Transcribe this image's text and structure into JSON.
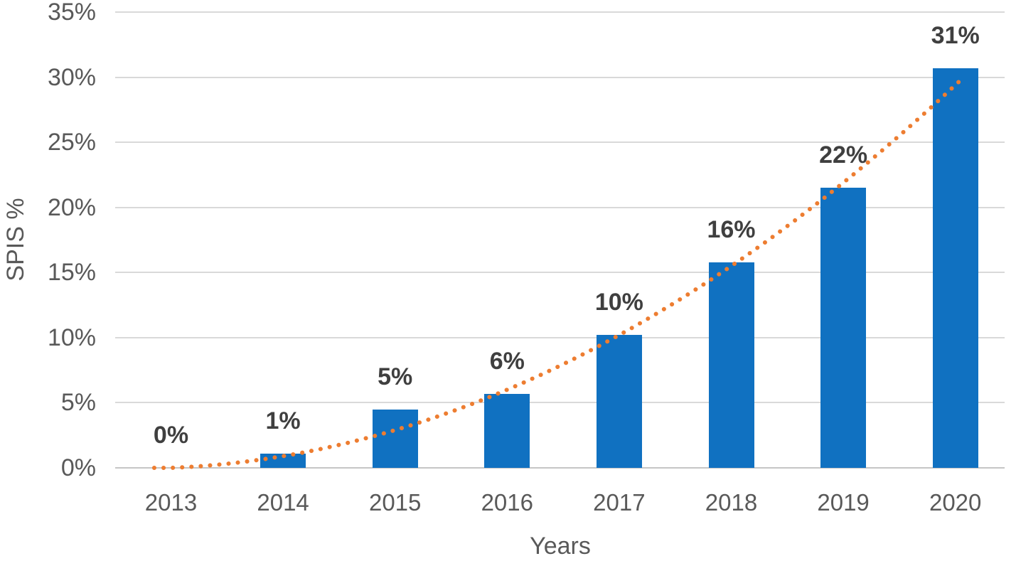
{
  "chart_data": {
    "type": "bar",
    "title": "",
    "xlabel": "Years",
    "ylabel": "SPIS %",
    "categories": [
      "2013",
      "2014",
      "2015",
      "2016",
      "2017",
      "2018",
      "2019",
      "2020"
    ],
    "series": [
      {
        "name": "SPIS %",
        "values": [
          0,
          1.1,
          4.5,
          5.7,
          10.2,
          15.8,
          21.5,
          30.7
        ]
      }
    ],
    "data_labels": [
      "0%",
      "1%",
      "5%",
      "6%",
      "10%",
      "16%",
      "22%",
      "31%"
    ],
    "ylim": [
      0,
      35
    ],
    "ytick_step": 5,
    "ytick_labels": [
      "0%",
      "5%",
      "10%",
      "15%",
      "20%",
      "25%",
      "30%",
      "35%"
    ],
    "grid": true,
    "legend_position": "none",
    "trendline": {
      "present": true,
      "style": "dotted",
      "description": "smooth rising curve from 0% at 2013 to about 30% at 2020"
    },
    "colors": {
      "bar": "#1071C1",
      "trend": "#ED7D31",
      "gridline": "#D9D9D9",
      "axis_line": "#C6C6C6",
      "tick_text": "#595959",
      "data_label_text": "#3F3F3F",
      "background": "#FFFFFF"
    }
  }
}
